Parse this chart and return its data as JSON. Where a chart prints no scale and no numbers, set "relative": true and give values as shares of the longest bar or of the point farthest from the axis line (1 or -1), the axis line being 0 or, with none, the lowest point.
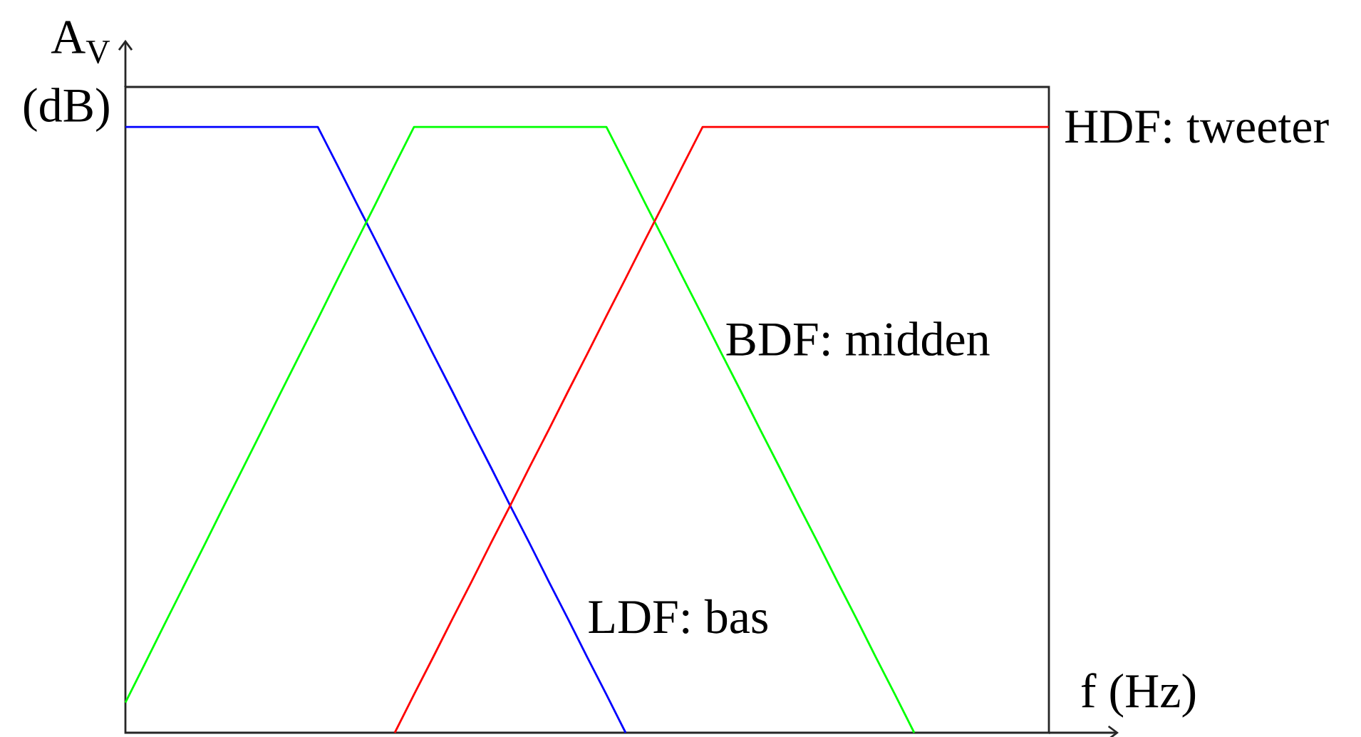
{
  "chart_data": {
    "type": "line",
    "relative": true,
    "xlabel": "f (Hz)",
    "ylabel": "A$_{V}$ (dB)",
    "categories": [
      null,
      null,
      null,
      null,
      null,
      null,
      null,
      null,
      null,
      null,
      null,
      null,
      null,
      null,
      null,
      null,
      null,
      null,
      null,
      null,
      null,
      null,
      null,
      null,
      null,
      null,
      null,
      null,
      null,
      null,
      null,
      null,
      null,
      null,
      null,
      null,
      null,
      null,
      null,
      null,
      null,
      null,
      null,
      null,
      null,
      null,
      null,
      null,
      null
    ],
    "series": [
      {
        "name": "LDF: bas",
        "color": "#0000ff",
        "values": [
          1,
          1,
          1,
          1,
          1,
          1,
          1,
          1,
          1,
          1,
          1,
          0.938,
          0.875,
          0.813,
          0.75,
          0.688,
          0.625,
          0.563,
          0.5,
          0.438,
          0.375,
          0.313,
          0.25,
          0.188,
          0.125,
          0.063,
          0,
          null,
          null,
          null,
          null,
          null,
          null,
          null,
          null,
          null,
          null,
          null,
          null,
          null,
          null,
          null,
          null,
          null,
          null,
          null,
          null,
          null,
          null
        ]
      },
      {
        "name": "BDF: midden",
        "color": "#00ff00",
        "values": [
          0.05,
          0.113,
          0.177,
          0.24,
          0.303,
          0.367,
          0.43,
          0.493,
          0.557,
          0.62,
          0.683,
          0.747,
          0.81,
          0.873,
          0.937,
          1,
          1,
          1,
          1,
          1,
          1,
          1,
          1,
          1,
          1,
          1,
          0.938,
          0.875,
          0.813,
          0.75,
          0.688,
          0.625,
          0.563,
          0.5,
          0.438,
          0.375,
          0.313,
          0.25,
          0.188,
          0.125,
          0.063,
          0,
          null,
          null,
          null,
          null,
          null,
          null,
          null
        ]
      },
      {
        "name": "HDF: tweeter",
        "color": "#ff0000",
        "values": [
          null,
          null,
          null,
          null,
          null,
          null,
          null,
          null,
          null,
          null,
          null,
          null,
          null,
          null,
          0,
          0.063,
          0.125,
          0.188,
          0.25,
          0.313,
          0.375,
          0.438,
          0.5,
          0.563,
          0.625,
          0.688,
          0.75,
          0.813,
          0.875,
          0.938,
          1,
          1,
          1,
          1,
          1,
          1,
          1,
          1,
          1,
          1,
          1,
          1,
          1,
          1,
          1,
          1,
          1,
          1,
          1
        ]
      }
    ]
  }
}
